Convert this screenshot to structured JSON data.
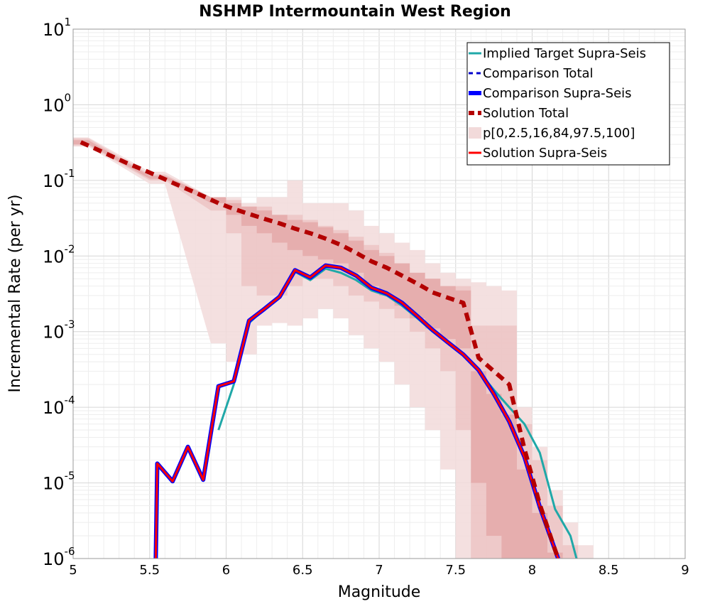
{
  "chart_data": {
    "type": "line",
    "title": "NSHMP Intermountain West Region",
    "xlabel": "Magnitude",
    "ylabel": "Incremental Rate (per yr)",
    "xlim": [
      5,
      9
    ],
    "ylim": [
      1e-06,
      10
    ],
    "yscale": "log",
    "grid": true,
    "legend_position": "top-right",
    "x_ticks": [
      "5",
      "5.5",
      "6",
      "6.5",
      "7",
      "7.5",
      "8",
      "8.5",
      "9"
    ],
    "y_ticks": [
      {
        "value": 1e-06,
        "base": "10",
        "exp": "-6"
      },
      {
        "value": 1e-05,
        "base": "10",
        "exp": "-5"
      },
      {
        "value": 0.0001,
        "base": "10",
        "exp": "-4"
      },
      {
        "value": 0.001,
        "base": "10",
        "exp": "-3"
      },
      {
        "value": 0.01,
        "base": "10",
        "exp": "-2"
      },
      {
        "value": 0.1,
        "base": "10",
        "exp": "-1"
      },
      {
        "value": 1,
        "base": "10",
        "exp": "0"
      },
      {
        "value": 10,
        "base": "10",
        "exp": "1"
      }
    ],
    "bands": [
      {
        "kind": "p0-100",
        "color": "#f2dada",
        "x": [
          5.05,
          5.55,
          5.95,
          6.05,
          6.15,
          6.25,
          6.35,
          6.45,
          6.55,
          6.65,
          6.75,
          6.85,
          6.95,
          7.05,
          7.15,
          7.25,
          7.35,
          7.45,
          7.55,
          7.65,
          7.75,
          7.85,
          7.95,
          8.05,
          8.15,
          8.25,
          8.35
        ],
        "lower": [
          0.28,
          0.09,
          0.0007,
          0.0004,
          0.0005,
          0.0012,
          0.0013,
          0.0012,
          0.0015,
          0.002,
          0.0015,
          0.0009,
          0.0006,
          0.0004,
          0.0002,
          0.0001,
          5e-05,
          1.5e-05,
          1e-06,
          1e-06,
          1e-06,
          1e-06,
          1e-06,
          1e-06,
          1e-06,
          1e-06,
          1e-06
        ],
        "upper": [
          0.37,
          0.13,
          0.06,
          0.06,
          0.05,
          0.06,
          0.06,
          0.1,
          0.05,
          0.05,
          0.05,
          0.04,
          0.025,
          0.02,
          0.015,
          0.012,
          0.008,
          0.006,
          0.005,
          0.0045,
          0.004,
          0.0035,
          0.0001,
          3e-05,
          8e-06,
          3e-06,
          1.5e-06
        ]
      },
      {
        "kind": "p2.5-97.5",
        "color": "#ecc4c4",
        "x": [
          5.05,
          5.55,
          5.95,
          6.05,
          6.15,
          6.25,
          6.35,
          6.45,
          6.55,
          6.65,
          6.75,
          6.85,
          6.95,
          7.05,
          7.15,
          7.25,
          7.35,
          7.45,
          7.55,
          7.65,
          7.75,
          7.85,
          7.95,
          8.05,
          8.15,
          8.25
        ],
        "lower": [
          0.29,
          0.1,
          0.04,
          0.02,
          0.004,
          0.003,
          0.003,
          0.004,
          0.005,
          0.005,
          0.004,
          0.003,
          0.0025,
          0.002,
          0.0015,
          0.001,
          0.0006,
          0.0003,
          5e-05,
          1e-06,
          1e-06,
          1e-06,
          1e-06,
          1e-06,
          1e-06,
          1e-06
        ],
        "upper": [
          0.36,
          0.12,
          0.06,
          0.055,
          0.045,
          0.045,
          0.035,
          0.035,
          0.03,
          0.025,
          0.022,
          0.018,
          0.014,
          0.011,
          0.008,
          0.006,
          0.005,
          0.004,
          0.004,
          0.0012,
          0.0012,
          0.0012,
          6e-05,
          2e-05,
          5e-06,
          1.5e-06
        ]
      },
      {
        "kind": "p16-84",
        "color": "#e4a9a9",
        "x": [
          5.05,
          5.55,
          5.95,
          6.05,
          6.15,
          6.25,
          6.35,
          6.45,
          6.55,
          6.65,
          6.75,
          6.85,
          6.95,
          7.05,
          7.15,
          7.25,
          7.35,
          7.45,
          7.55,
          7.65,
          7.75,
          7.85,
          7.95,
          8.05,
          8.15
        ],
        "lower": [
          0.3,
          0.105,
          0.05,
          0.035,
          0.025,
          0.02,
          0.015,
          0.012,
          0.01,
          0.009,
          0.008,
          0.006,
          0.004,
          0.003,
          0.0022,
          0.0015,
          0.0011,
          0.0008,
          0.0006,
          1e-05,
          2e-06,
          1e-06,
          1e-06,
          1e-06,
          1e-06
        ],
        "upper": [
          0.34,
          0.115,
          0.06,
          0.05,
          0.045,
          0.04,
          0.035,
          0.03,
          0.028,
          0.024,
          0.02,
          0.016,
          0.012,
          0.01,
          0.008,
          0.006,
          0.005,
          0.004,
          0.0035,
          0.0003,
          0.00015,
          8e-05,
          1.5e-05,
          4e-06,
          1.2e-06
        ]
      }
    ],
    "series": [
      {
        "name": "Implied Target Supra-Seis",
        "color": "#20a8a8",
        "dash": "solid",
        "width": 3,
        "x": [
          5.95,
          6.05,
          6.15,
          6.25,
          6.35,
          6.45,
          6.55,
          6.65,
          6.75,
          6.85,
          6.95,
          7.05,
          7.15,
          7.25,
          7.35,
          7.45,
          7.55,
          7.65,
          7.75,
          7.85,
          7.95,
          8.05,
          8.15,
          8.25,
          8.29
        ],
        "y": [
          5e-05,
          0.0002,
          0.0013,
          0.002,
          0.0029,
          0.0062,
          0.0048,
          0.0068,
          0.006,
          0.0048,
          0.0035,
          0.003,
          0.0022,
          0.0015,
          0.001,
          0.0007,
          0.00048,
          0.0003,
          0.00017,
          0.0001,
          6e-05,
          2.5e-05,
          4.5e-06,
          2e-06,
          1e-06
        ]
      },
      {
        "name": "Comparison Total",
        "color": "#0000cc",
        "dash": "dashed",
        "width": 3,
        "x": [
          5.55,
          5.65,
          5.75,
          5.85,
          5.95,
          6.05,
          6.15,
          6.25,
          6.35,
          6.45,
          6.55,
          6.65,
          6.75,
          6.85,
          6.95,
          7.05,
          7.15,
          7.25,
          7.35,
          7.45,
          7.55,
          7.65,
          7.75,
          7.85,
          7.95,
          8.05,
          8.15,
          8.17
        ],
        "y": [
          1.8e-05,
          1.05e-05,
          3e-05,
          1.1e-05,
          0.00019,
          0.00022,
          0.0014,
          0.002,
          0.0029,
          0.0065,
          0.0052,
          0.0075,
          0.007,
          0.0055,
          0.0038,
          0.0032,
          0.0024,
          0.0016,
          0.00105,
          0.00072,
          0.0005,
          0.00031,
          0.00015,
          6.5e-05,
          2.2e-05,
          4.8e-06,
          1.3e-06,
          1e-06
        ]
      },
      {
        "name": "Comparison Supra-Seis",
        "color": "#0000ff",
        "dash": "solid",
        "width": 6,
        "x": [
          5.54,
          5.55,
          5.65,
          5.75,
          5.85,
          5.95,
          6.05,
          6.15,
          6.25,
          6.35,
          6.45,
          6.55,
          6.65,
          6.75,
          6.85,
          6.95,
          7.05,
          7.15,
          7.25,
          7.35,
          7.45,
          7.55,
          7.65,
          7.75,
          7.85,
          7.95,
          8.05,
          8.15,
          8.17
        ],
        "y": [
          1e-06,
          1.8e-05,
          1.05e-05,
          3e-05,
          1.1e-05,
          0.00019,
          0.00022,
          0.0014,
          0.002,
          0.0029,
          0.0065,
          0.0052,
          0.0075,
          0.007,
          0.0055,
          0.0038,
          0.0032,
          0.0024,
          0.0016,
          0.00105,
          0.00072,
          0.0005,
          0.00031,
          0.00015,
          6.5e-05,
          2.2e-05,
          4.8e-06,
          1.3e-06,
          1e-06
        ]
      },
      {
        "name": "Solution Total",
        "color": "#b30000",
        "dash": "dashed",
        "width": 6,
        "x": [
          5.05,
          5.15,
          5.25,
          5.35,
          5.45,
          5.55,
          5.65,
          5.75,
          5.85,
          5.95,
          6.05,
          6.15,
          6.25,
          6.35,
          6.45,
          6.55,
          6.65,
          6.75,
          6.85,
          6.95,
          7.05,
          7.15,
          7.25,
          7.35,
          7.45,
          7.55,
          7.65,
          7.75,
          7.85,
          7.95,
          8.05,
          8.15,
          8.17
        ],
        "y": [
          0.32,
          0.26,
          0.21,
          0.17,
          0.14,
          0.115,
          0.093,
          0.076,
          0.062,
          0.05,
          0.042,
          0.036,
          0.031,
          0.027,
          0.023,
          0.02,
          0.017,
          0.014,
          0.011,
          0.0085,
          0.007,
          0.0055,
          0.0043,
          0.0033,
          0.0028,
          0.0024,
          0.00045,
          0.0003,
          0.0002,
          2.8e-05,
          5.2e-06,
          1.3e-06,
          1e-06
        ]
      },
      {
        "name": "p[0,2.5,16,84,97.5,100]",
        "color": "#f2dada",
        "legend_style": "block"
      },
      {
        "name": "Solution Supra-Seis",
        "color": "#ff0000",
        "dash": "solid",
        "width": 3,
        "x": [
          5.54,
          5.55,
          5.65,
          5.75,
          5.85,
          5.95,
          6.05,
          6.15,
          6.25,
          6.35,
          6.45,
          6.55,
          6.65,
          6.75,
          6.85,
          6.95,
          7.05,
          7.15,
          7.25,
          7.35,
          7.45,
          7.55,
          7.65,
          7.75,
          7.85,
          7.95,
          8.05,
          8.15,
          8.17
        ],
        "y": [
          1e-06,
          1.8e-05,
          1.05e-05,
          3e-05,
          1.1e-05,
          0.00019,
          0.00022,
          0.0014,
          0.002,
          0.0029,
          0.0065,
          0.0052,
          0.0075,
          0.007,
          0.0055,
          0.0038,
          0.0032,
          0.0024,
          0.0016,
          0.00105,
          0.00072,
          0.0005,
          0.00031,
          0.00015,
          6.5e-05,
          2.2e-05,
          4.8e-06,
          1.3e-06,
          1e-06
        ]
      }
    ]
  }
}
